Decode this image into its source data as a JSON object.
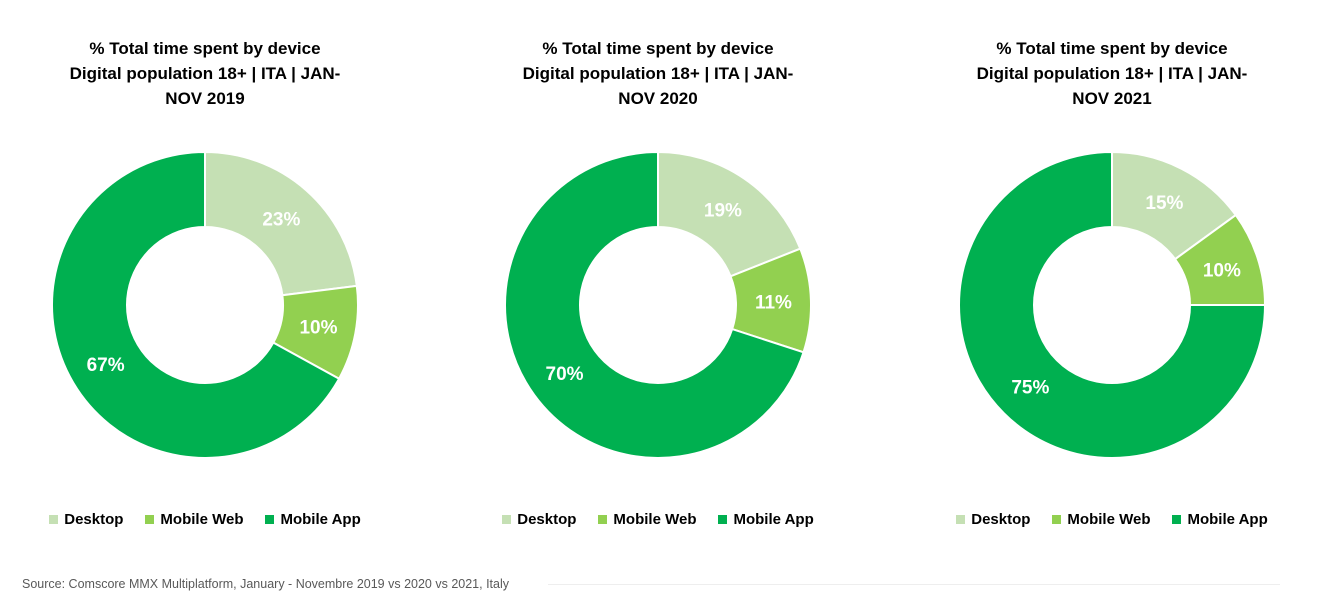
{
  "colors": {
    "Desktop": "#C5E0B4",
    "Mobile Web": "#92D050",
    "Mobile App": "#00B050"
  },
  "chart_data": [
    {
      "type": "pie",
      "title": [
        "% Total time spent by device",
        "Digital population 18+ | ITA | JAN-",
        "NOV 2019"
      ],
      "categories": [
        "Desktop",
        "Mobile Web",
        "Mobile App"
      ],
      "values": [
        23,
        10,
        67
      ],
      "labels": [
        "23%",
        "10%",
        "67%"
      ],
      "legend": "bottom"
    },
    {
      "type": "pie",
      "title": [
        "% Total time spent by device",
        "Digital population 18+ | ITA | JAN-",
        "NOV 2020"
      ],
      "categories": [
        "Desktop",
        "Mobile Web",
        "Mobile App"
      ],
      "values": [
        19,
        11,
        70
      ],
      "labels": [
        "19%",
        "11%",
        "70%"
      ],
      "legend": "bottom"
    },
    {
      "type": "pie",
      "title": [
        "% Total time spent by device",
        "Digital population 18+ | ITA | JAN-",
        "NOV 2021"
      ],
      "categories": [
        "Desktop",
        "Mobile Web",
        "Mobile App"
      ],
      "values": [
        15,
        10,
        75
      ],
      "labels": [
        "15%",
        "10%",
        "75%"
      ],
      "legend": "bottom"
    }
  ],
  "source": "Source: Comscore MMX Multiplatform, January - Novembre 2019 vs 2020 vs 2021, Italy"
}
